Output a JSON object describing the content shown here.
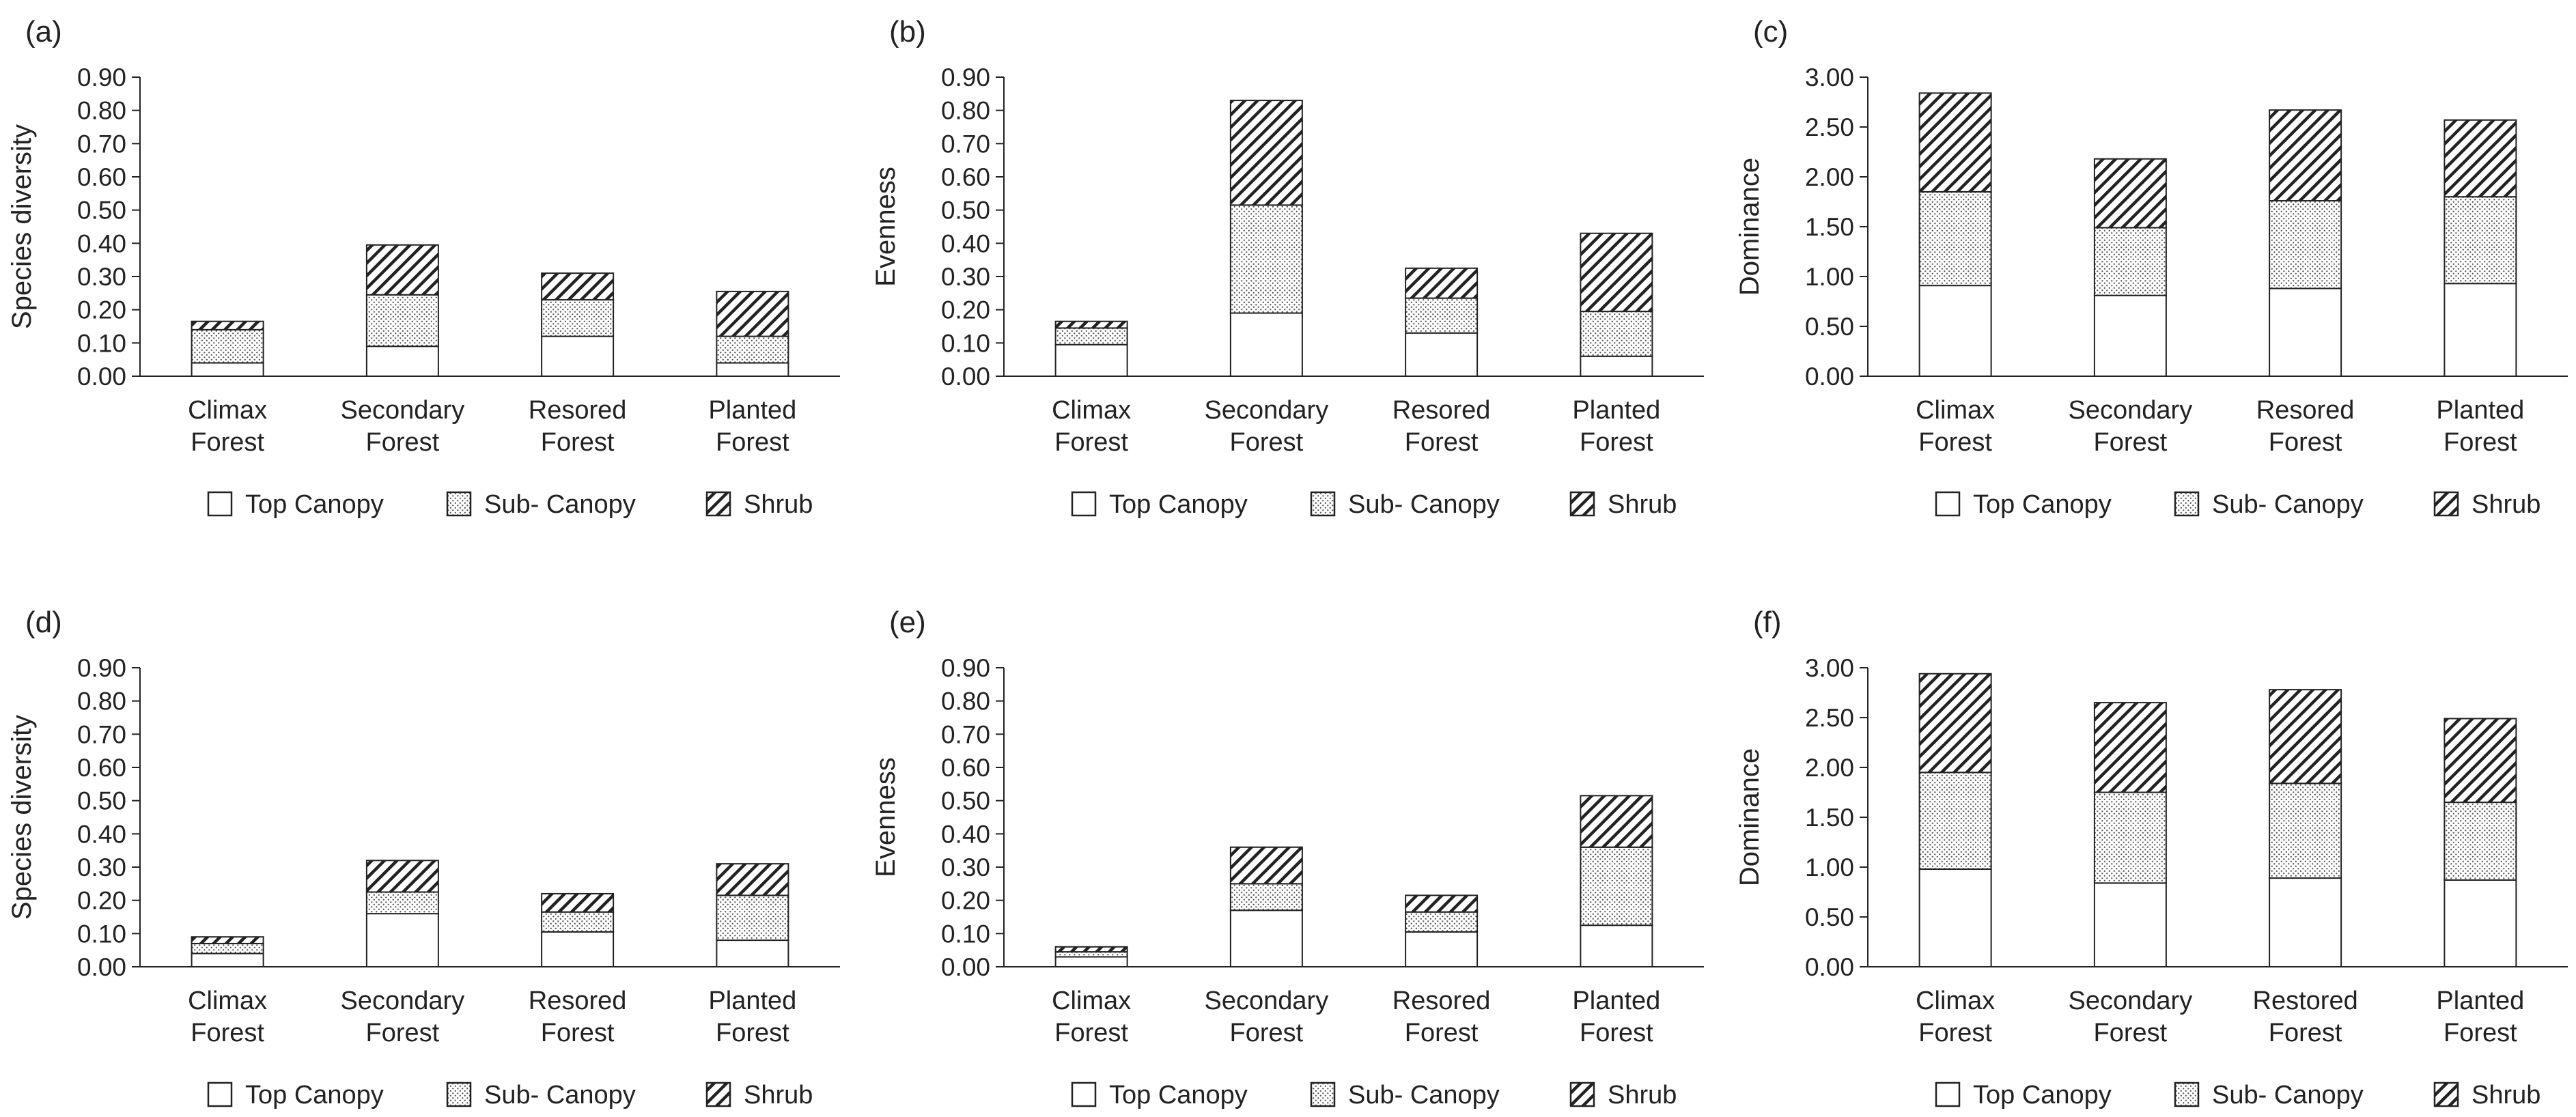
{
  "figure": {
    "legend": {
      "items": [
        {
          "name": "Top Canopy",
          "pattern": "white"
        },
        {
          "name": "Sub- Canopy",
          "pattern": "dots"
        },
        {
          "name": "Shrub",
          "pattern": "hatch"
        }
      ]
    },
    "colors": {
      "stroke": "#222222",
      "background": "#ffffff",
      "fill_white": "#ffffff"
    }
  },
  "chart_data": [
    {
      "type": "bar",
      "stacked": true,
      "panel_label": "(a)",
      "title": "",
      "xlabel": "",
      "ylabel": "Species diversity",
      "ylim": [
        0,
        0.9
      ],
      "yticks": [
        "0.00",
        "0.10",
        "0.20",
        "0.30",
        "0.40",
        "0.50",
        "0.60",
        "0.70",
        "0.80",
        "0.90"
      ],
      "categories": [
        [
          "Climax",
          "Forest"
        ],
        [
          "Secondary",
          "Forest"
        ],
        [
          "Resored",
          "Forest"
        ],
        [
          "Planted",
          "Forest"
        ]
      ],
      "series": [
        {
          "name": "Top Canopy",
          "values": [
            0.04,
            0.09,
            0.12,
            0.04
          ]
        },
        {
          "name": "Sub- Canopy",
          "values": [
            0.1,
            0.155,
            0.11,
            0.08
          ]
        },
        {
          "name": "Shrub",
          "values": [
            0.025,
            0.15,
            0.08,
            0.135
          ]
        }
      ]
    },
    {
      "type": "bar",
      "stacked": true,
      "panel_label": "(b)",
      "title": "",
      "xlabel": "",
      "ylabel": "Evenness",
      "ylim": [
        0,
        0.9
      ],
      "yticks": [
        "0.00",
        "0.10",
        "0.20",
        "0.30",
        "0.40",
        "0.50",
        "0.60",
        "0.70",
        "0.80",
        "0.90"
      ],
      "categories": [
        [
          "Climax",
          "Forest"
        ],
        [
          "Secondary",
          "Forest"
        ],
        [
          "Resored",
          "Forest"
        ],
        [
          "Planted",
          "Forest"
        ]
      ],
      "series": [
        {
          "name": "Top Canopy",
          "values": [
            0.095,
            0.19,
            0.13,
            0.06
          ]
        },
        {
          "name": "Sub- Canopy",
          "values": [
            0.05,
            0.325,
            0.105,
            0.135
          ]
        },
        {
          "name": "Shrub",
          "values": [
            0.02,
            0.315,
            0.09,
            0.235
          ]
        }
      ]
    },
    {
      "type": "bar",
      "stacked": true,
      "panel_label": "(c)",
      "title": "",
      "xlabel": "",
      "ylabel": "Dominance",
      "ylim": [
        0,
        3.0
      ],
      "yticks": [
        "0.00",
        "0.50",
        "1.00",
        "1.50",
        "2.00",
        "2.50",
        "3.00"
      ],
      "categories": [
        [
          "Climax",
          "Forest"
        ],
        [
          "Secondary",
          "Forest"
        ],
        [
          "Resored",
          "Forest"
        ],
        [
          "Planted",
          "Forest"
        ]
      ],
      "series": [
        {
          "name": "Top Canopy",
          "values": [
            0.91,
            0.81,
            0.88,
            0.93
          ]
        },
        {
          "name": "Sub- Canopy",
          "values": [
            0.94,
            0.68,
            0.88,
            0.87
          ]
        },
        {
          "name": "Shrub",
          "values": [
            0.99,
            0.69,
            0.91,
            0.77
          ]
        }
      ]
    },
    {
      "type": "bar",
      "stacked": true,
      "panel_label": "(d)",
      "title": "",
      "xlabel": "",
      "ylabel": "Species diversity",
      "ylim": [
        0,
        0.9
      ],
      "yticks": [
        "0.00",
        "0.10",
        "0.20",
        "0.30",
        "0.40",
        "0.50",
        "0.60",
        "0.70",
        "0.80",
        "0.90"
      ],
      "categories": [
        [
          "Climax",
          "Forest"
        ],
        [
          "Secondary",
          "Forest"
        ],
        [
          "Resored",
          "Forest"
        ],
        [
          "Planted",
          "Forest"
        ]
      ],
      "series": [
        {
          "name": "Top Canopy",
          "values": [
            0.04,
            0.16,
            0.105,
            0.08
          ]
        },
        {
          "name": "Sub- Canopy",
          "values": [
            0.03,
            0.065,
            0.06,
            0.135
          ]
        },
        {
          "name": "Shrub",
          "values": [
            0.02,
            0.095,
            0.055,
            0.095
          ]
        }
      ]
    },
    {
      "type": "bar",
      "stacked": true,
      "panel_label": "(e)",
      "title": "",
      "xlabel": "",
      "ylabel": "Evenness",
      "ylim": [
        0,
        0.9
      ],
      "yticks": [
        "0.00",
        "0.10",
        "0.20",
        "0.30",
        "0.40",
        "0.50",
        "0.60",
        "0.70",
        "0.80",
        "0.90"
      ],
      "categories": [
        [
          "Climax",
          "Forest"
        ],
        [
          "Secondary",
          "Forest"
        ],
        [
          "Resored",
          "Forest"
        ],
        [
          "Planted",
          "Forest"
        ]
      ],
      "series": [
        {
          "name": "Top Canopy",
          "values": [
            0.03,
            0.17,
            0.105,
            0.125
          ]
        },
        {
          "name": "Sub- Canopy",
          "values": [
            0.015,
            0.08,
            0.06,
            0.235
          ]
        },
        {
          "name": "Shrub",
          "values": [
            0.015,
            0.11,
            0.05,
            0.155
          ]
        }
      ]
    },
    {
      "type": "bar",
      "stacked": true,
      "panel_label": "(f)",
      "title": "",
      "xlabel": "",
      "ylabel": "Dominance",
      "ylim": [
        0,
        3.0
      ],
      "yticks": [
        "0.00",
        "0.50",
        "1.00",
        "1.50",
        "2.00",
        "2.50",
        "3.00"
      ],
      "categories": [
        [
          "Climax",
          "Forest"
        ],
        [
          "Secondary",
          "Forest"
        ],
        [
          "Restored",
          "Forest"
        ],
        [
          "Planted",
          "Forest"
        ]
      ],
      "series": [
        {
          "name": "Top Canopy",
          "values": [
            0.98,
            0.84,
            0.89,
            0.87
          ]
        },
        {
          "name": "Sub- Canopy",
          "values": [
            0.97,
            0.91,
            0.95,
            0.78
          ]
        },
        {
          "name": "Shrub",
          "values": [
            0.99,
            0.9,
            0.94,
            0.84
          ]
        }
      ]
    }
  ]
}
